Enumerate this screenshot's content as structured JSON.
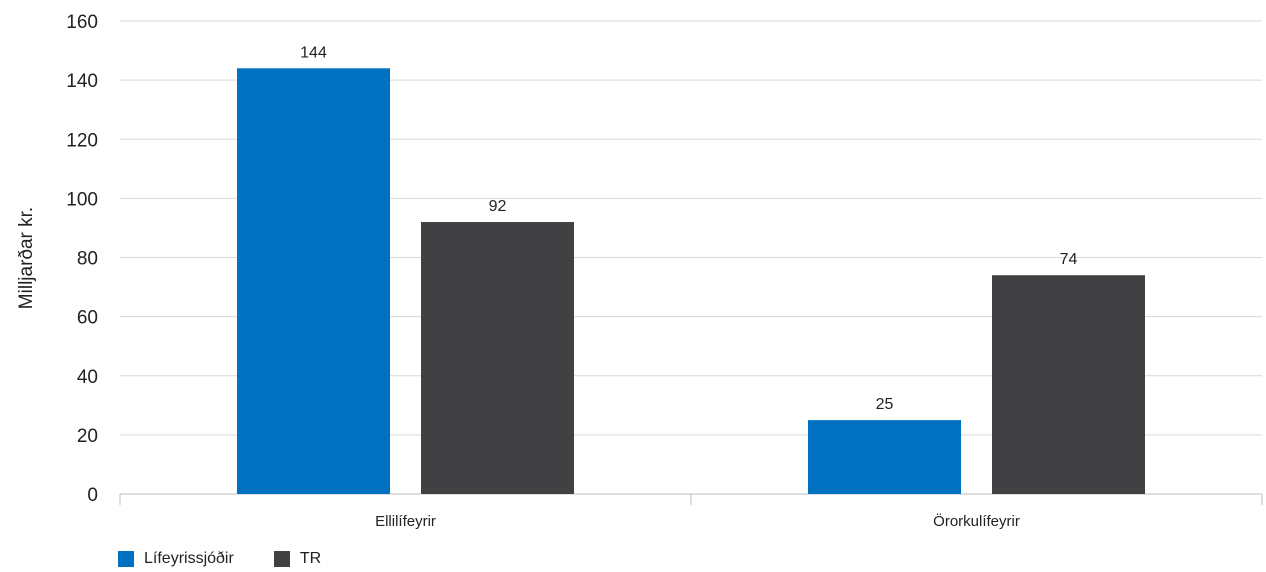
{
  "chart_data": {
    "type": "bar",
    "title": "",
    "xlabel": "",
    "ylabel": "Milljarðar kr.",
    "ylim": [
      0,
      160
    ],
    "yticks": [
      0,
      20,
      40,
      60,
      80,
      100,
      120,
      140,
      160
    ],
    "categories": [
      "Ellilífeyrir",
      "Örorkulífeyrir"
    ],
    "series": [
      {
        "name": "Lífeyrissjóðir",
        "values": [
          144,
          25
        ],
        "color": "#0070C0"
      },
      {
        "name": "TR",
        "values": [
          92,
          74
        ],
        "color": "#414042"
      }
    ],
    "grid": true,
    "legend": "bottom-left",
    "data_labels": true
  }
}
